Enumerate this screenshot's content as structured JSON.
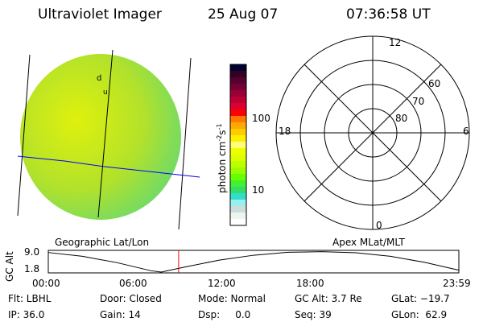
{
  "header": {
    "title": "Ultraviolet Imager",
    "date": "25 Aug 07",
    "time": "07:36:58 UT"
  },
  "colorbar": {
    "label": "photon cm",
    "exp1": "-2",
    "unit2": "s",
    "exp2": "-1",
    "ticks": [
      "100",
      "10"
    ],
    "colors": [
      "#000033",
      "#330022",
      "#550033",
      "#770033",
      "#990033",
      "#bb0033",
      "#dd0033",
      "#ff0000",
      "#ff7700",
      "#ffaa00",
      "#ffcc00",
      "#ffee00",
      "#ffff77",
      "#eeff00",
      "#ddff00",
      "#bbff00",
      "#99ff00",
      "#66ff00",
      "#44ee33",
      "#33dd66",
      "#33ddcc",
      "#99eeee",
      "#ccdddd",
      "#eef4ee",
      "#ffffff"
    ]
  },
  "polar": {
    "mlt_labels": {
      "top": "12",
      "left": "18",
      "right": "6",
      "bottom": "0"
    },
    "lat_labels": [
      "60",
      "70",
      "80"
    ]
  },
  "map": {
    "labels": [
      "d",
      "u"
    ]
  },
  "chart_data": {
    "type": "line",
    "title_left": "Geographic Lat/Lon",
    "title_right": "Apex MLat/MLT",
    "ylabel": "GC Alt",
    "yticks": [
      "9.0",
      "1.8"
    ],
    "xticks": [
      "00:00",
      "06:00",
      "12:00",
      "18:00",
      "23:59"
    ],
    "x_hours": [
      0,
      2,
      4,
      6,
      6.6,
      8,
      10,
      12,
      14,
      16,
      18,
      20,
      22,
      24
    ],
    "y": [
      9.0,
      7.6,
      5.3,
      2.3,
      1.8,
      3.7,
      6.2,
      8.0,
      9.1,
      9.3,
      8.9,
      7.6,
      5.4,
      2.5
    ],
    "current_time_hours": 7.62,
    "ylim": [
      1.8,
      9.5
    ]
  },
  "info": [
    [
      "Flt: LBHL",
      "IP: 36.0"
    ],
    [
      "Door: Closed",
      "Gain: 14"
    ],
    [
      "Mode: Normal",
      "Dsp:     0.0"
    ],
    [
      "GC Alt: 3.7 Re",
      "Seq: 39"
    ],
    [
      "GLat: −19.7",
      "GLon:  62.9"
    ]
  ]
}
